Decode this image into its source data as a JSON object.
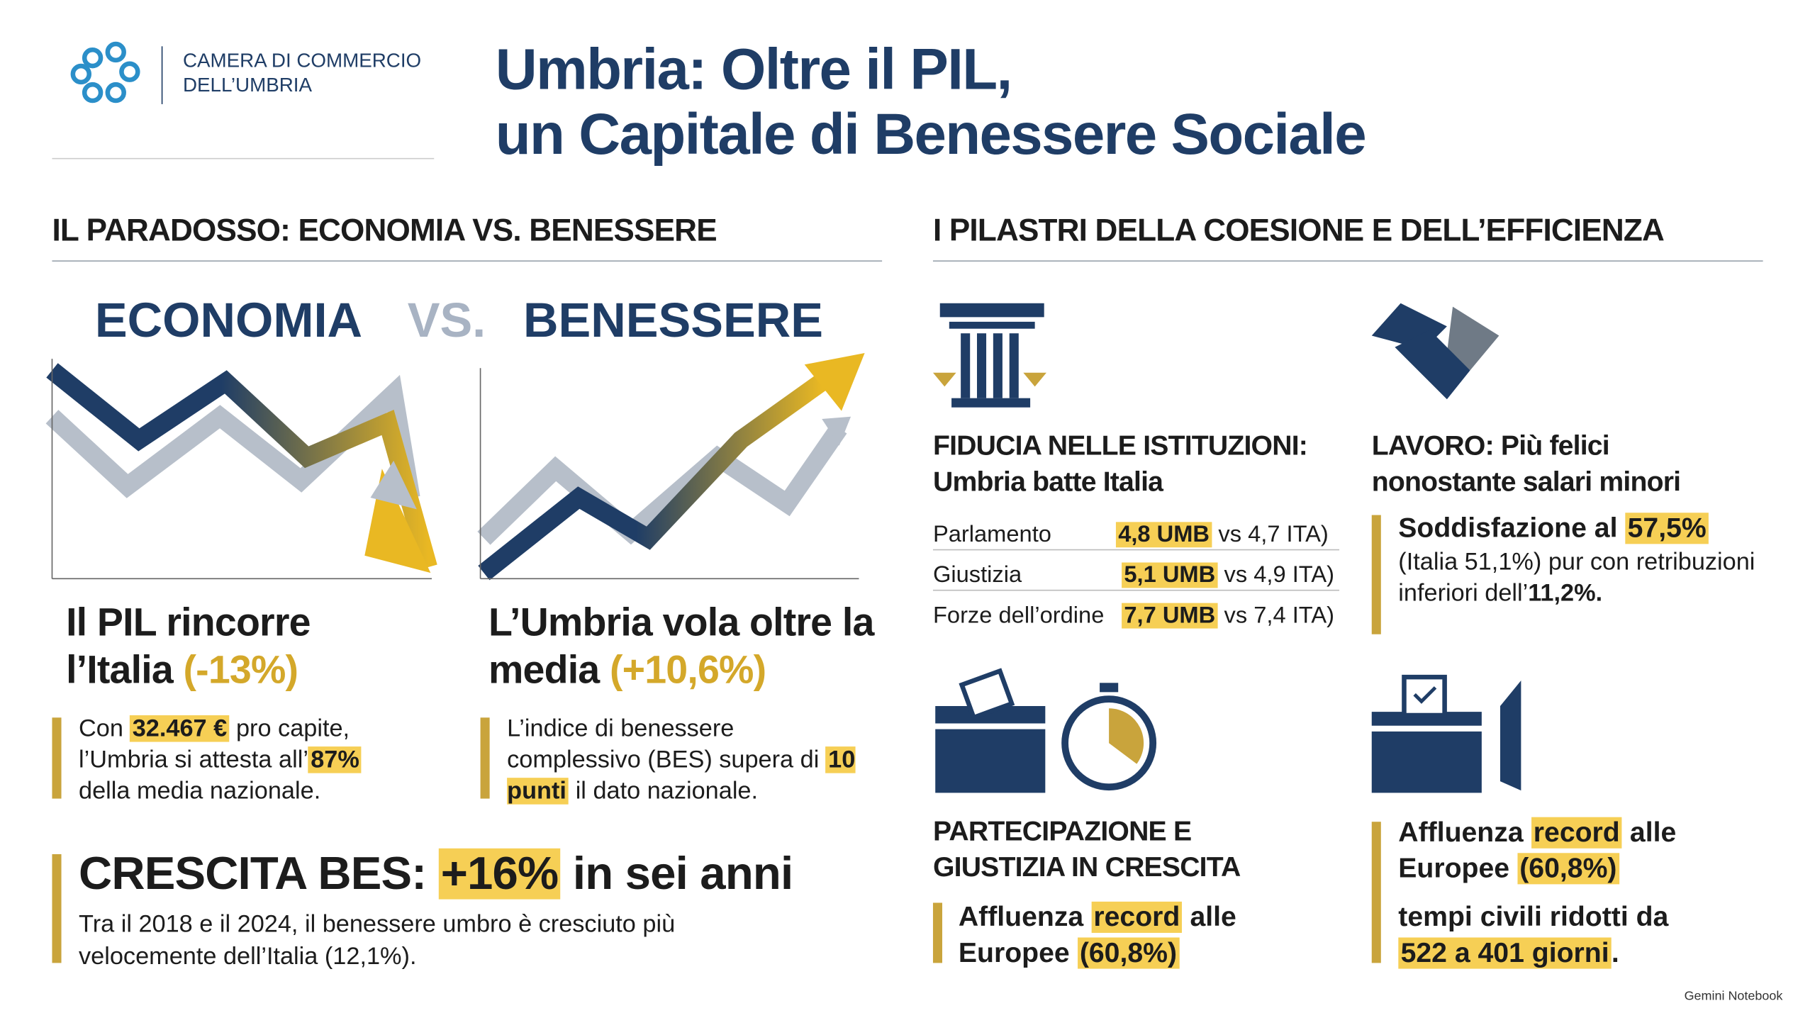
{
  "header": {
    "org_line1": "CAMERA DI COMMERCIO",
    "org_line2": "DELL’UMBRIA",
    "title_line1": "Umbria: Oltre il PIL,",
    "title_line2": "un Capitale di Benessere Sociale"
  },
  "left": {
    "heading": "IL PARADOSSO: ECONOMIA VS. BENESSERE",
    "vs": [
      "ECONOMIA",
      "VS.",
      "BENESSERE"
    ],
    "pil": {
      "title": [
        "Il PIL rincorre l’Italia ",
        "(-13%)"
      ],
      "text": [
        "Con ",
        "32.467 €",
        " pro capite, l’Umbria si attesta all’",
        "87%",
        " della media nazionale."
      ]
    },
    "bes": {
      "title": [
        "L’Umbria vola oltre la media ",
        "(+10,6%)"
      ],
      "text": [
        "L’indice di benessere complessivo (BES) supera di ",
        "10 punti",
        " il dato nazionale."
      ]
    },
    "growth": {
      "title": [
        "CRESCITA BES: ",
        "+16%",
        " in sei anni"
      ],
      "text": "Tra il 2018 e il 2024, il benessere umbro è cresciuto più velocemente dell’Italia (12,1%)."
    }
  },
  "right": {
    "heading": "I PILASTRI DELLA COESIONE E DELL’EFFICIENZA",
    "trust": {
      "title": [
        "FIDUCIA NELLE ISTITUZIONI:",
        "Umbria batte Italia"
      ],
      "rows": [
        [
          "Parlamento",
          "4,8 UMB",
          "vs 4,7 ITA)"
        ],
        [
          "Giustizia",
          "5,1 UMB",
          "vs 4,9 ITA)"
        ],
        [
          "Forze dell’ordine",
          "7,7 UMB",
          "vs 7,4 ITA)"
        ]
      ]
    },
    "work": {
      "title": [
        "LAVORO: Più felici",
        "nonostante salari minori"
      ],
      "text": [
        "Soddisfazione al ",
        "57,5%",
        "(Italia 51,1%) pur con retribuzioni inferiori dell’",
        "11,2%",
        "."
      ]
    },
    "participation": {
      "title": [
        "PARTECIPAZIONE E",
        "GIUSTIZIA IN CRESCITA"
      ],
      "text": [
        "Affluenza ",
        "record",
        " alle Europee ",
        "(60,8%)"
      ]
    },
    "vote": {
      "text": [
        "Affluenza ",
        "record",
        " alle Europee ",
        "(60,8%)"
      ],
      "text2": [
        "tempi civili ridotti da ",
        "522 a 401 giorni",
        "."
      ]
    }
  },
  "footer": "Gemini Notebook"
}
